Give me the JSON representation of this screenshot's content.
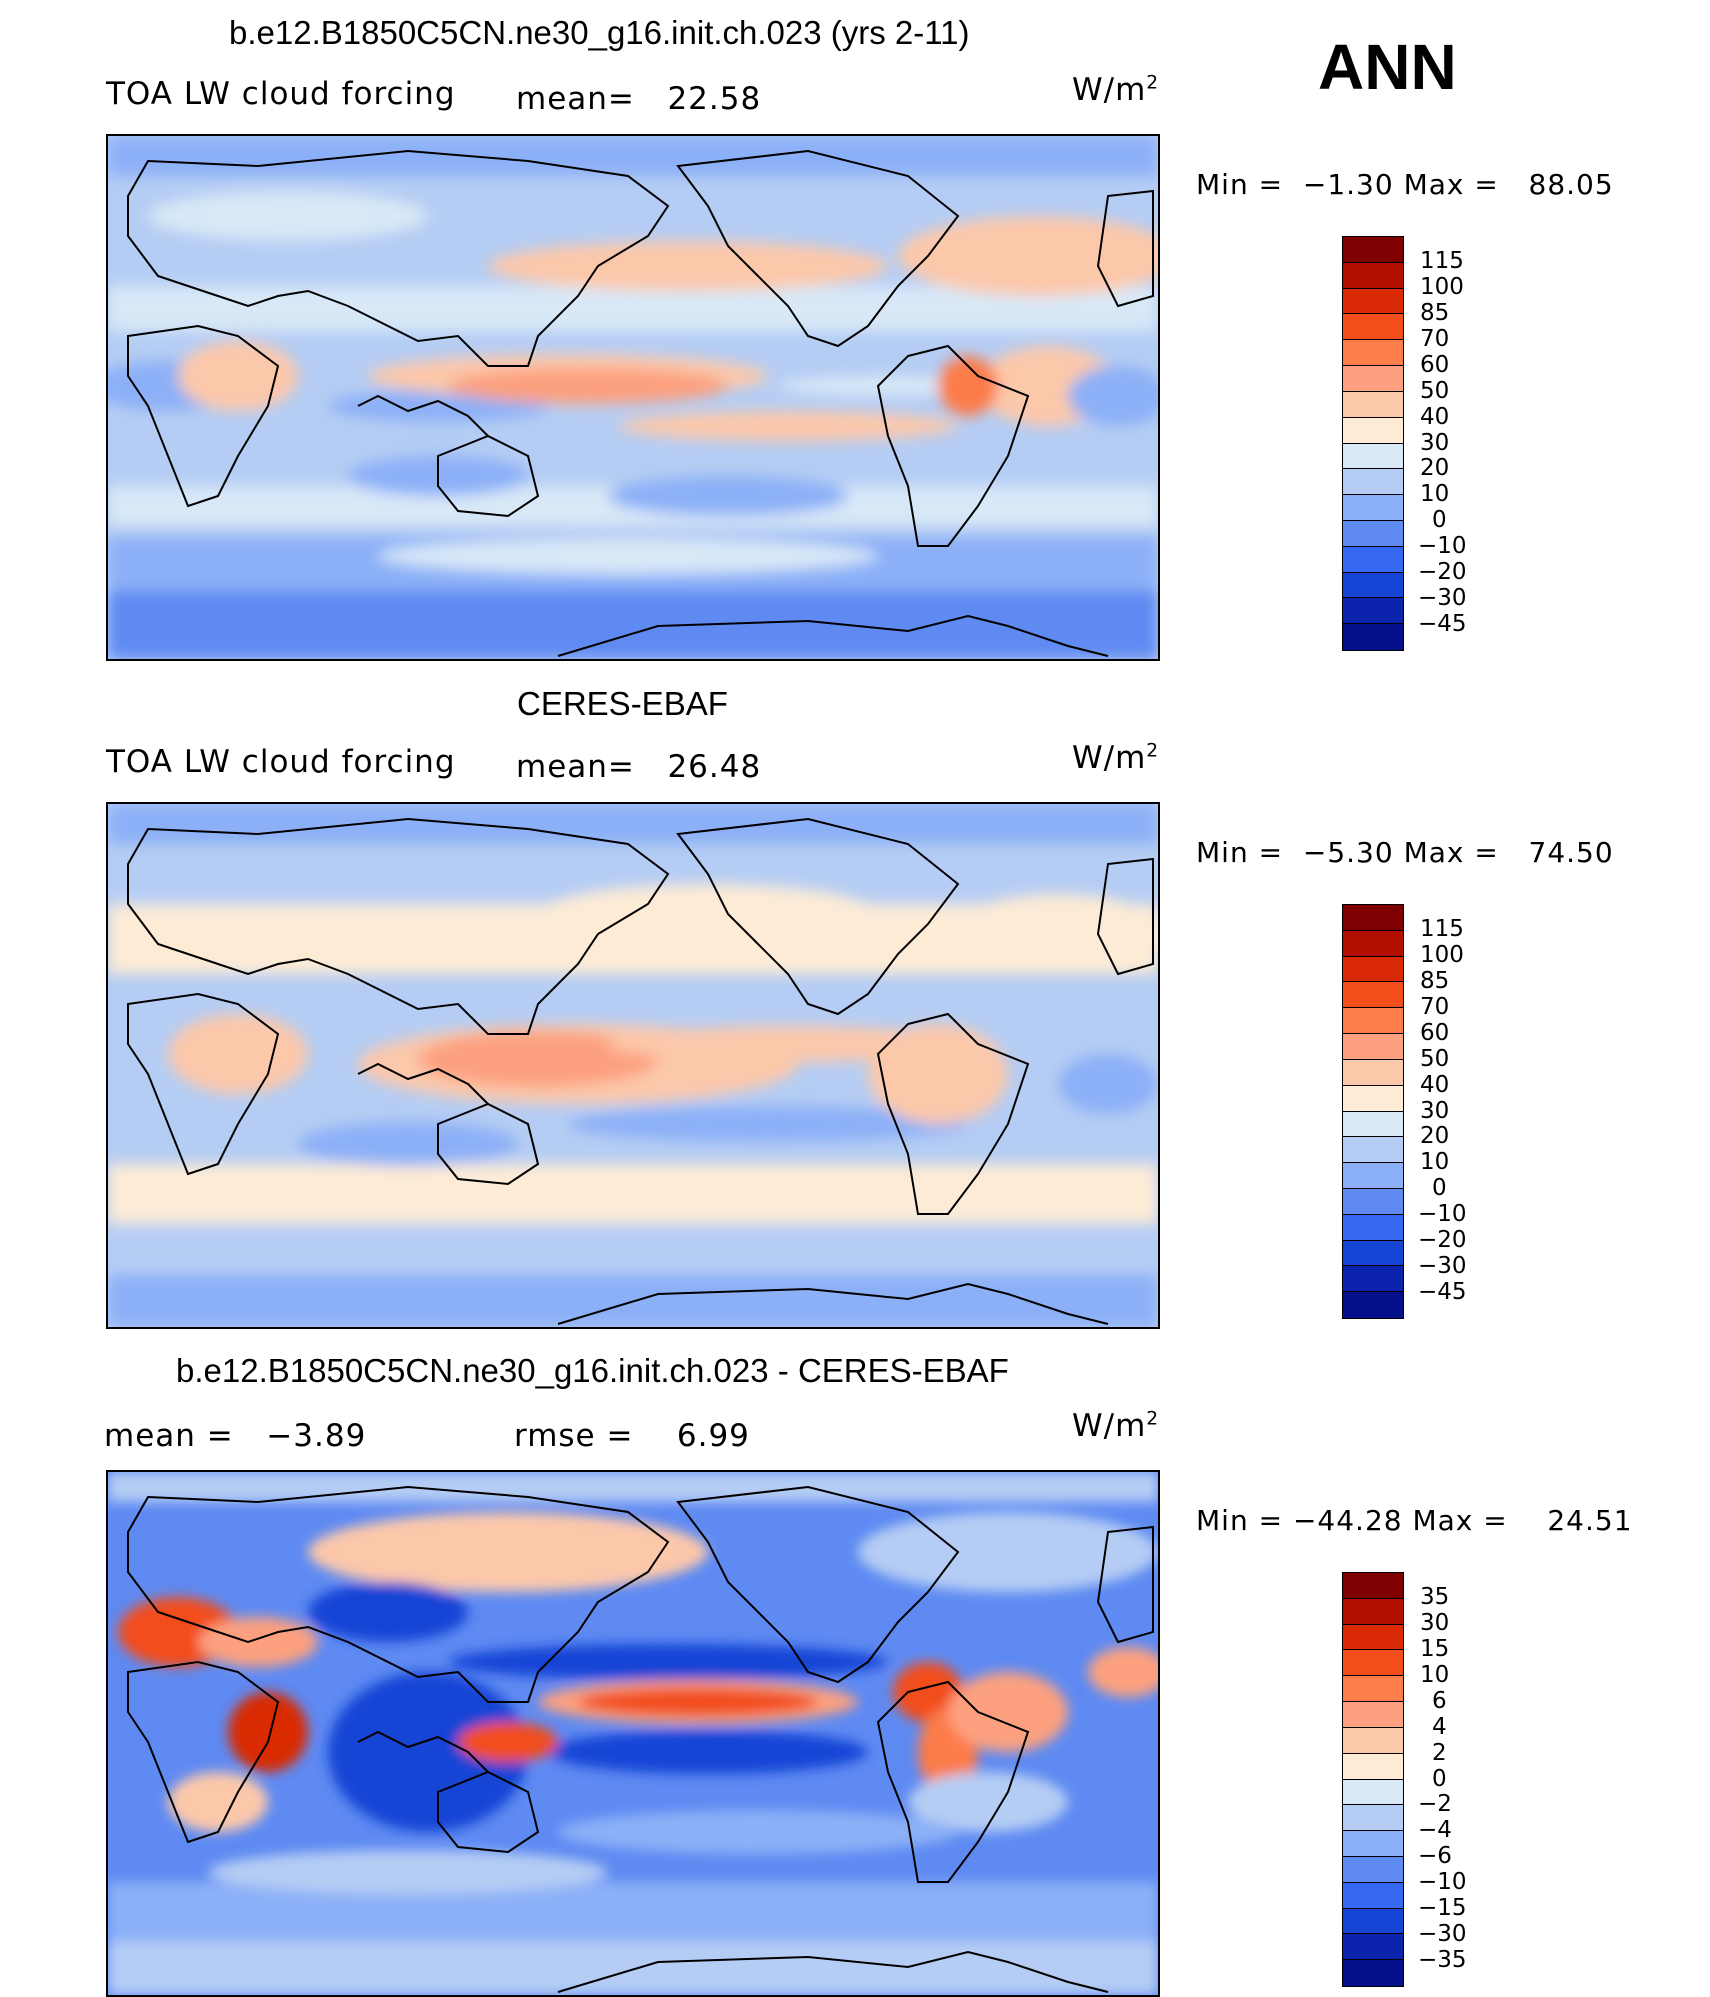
{
  "season": "ANN",
  "units": "W/m",
  "units_sup": "2",
  "panels": [
    {
      "title": "b.e12.B1850C5CN.ne30_g16.init.ch.023 (yrs 2-11)",
      "left_label": "TOA LW cloud forcing",
      "mid_label": "mean=",
      "mid_value": "22.58",
      "min_label": "Min =",
      "min_value": "−1.30",
      "max_label": "Max =",
      "max_value": "88.05",
      "levels": [
        "115",
        "100",
        "85",
        "70",
        "60",
        "50",
        "40",
        "30",
        "20",
        "10",
        "0",
        "−10",
        "−20",
        "−30",
        "−45"
      ]
    },
    {
      "title": "CERES-EBAF",
      "left_label": "TOA LW cloud forcing",
      "mid_label": "mean=",
      "mid_value": "26.48",
      "min_label": "Min =",
      "min_value": "−5.30",
      "max_label": "Max =",
      "max_value": "74.50",
      "levels": [
        "115",
        "100",
        "85",
        "70",
        "60",
        "50",
        "40",
        "30",
        "20",
        "10",
        "0",
        "−10",
        "−20",
        "−30",
        "−45"
      ]
    },
    {
      "title": "b.e12.B1850C5CN.ne30_g16.init.ch.023 - CERES-EBAF",
      "left_label": "mean =",
      "left_value": "−3.89",
      "mid_label": "rmse =",
      "mid_value": "6.99",
      "min_label": "Min =",
      "min_value": "−44.28",
      "max_label": "Max =",
      "max_value": "24.51",
      "levels": [
        "35",
        "30",
        "15",
        "10",
        "6",
        "4",
        "2",
        "0",
        "−2",
        "−4",
        "−6",
        "−10",
        "−15",
        "−30",
        "−35"
      ]
    }
  ],
  "colorbar_colors": [
    "#7f0000",
    "#b30f00",
    "#d92a05",
    "#f24e1c",
    "#fc7c4a",
    "#fca07f",
    "#fcc8aa",
    "#fdebd6",
    "#d8e8f7",
    "#b5cdf4",
    "#8cb0f7",
    "#5e8af2",
    "#3468f0",
    "#1645d6",
    "#0c24ad",
    "#06108a"
  ],
  "chart_data": [
    {
      "type": "heatmap",
      "title": "b.e12.B1850C5CN.ne30_g16.init.ch.023 (yrs 2-11)",
      "variable": "TOA LW cloud forcing",
      "units": "W/m2",
      "mean": 22.58,
      "min": -1.3,
      "max": 88.05,
      "contour_levels": [
        -45,
        -30,
        -20,
        -10,
        0,
        10,
        20,
        30,
        40,
        50,
        60,
        70,
        85,
        100,
        115
      ]
    },
    {
      "type": "heatmap",
      "title": "CERES-EBAF",
      "variable": "TOA LW cloud forcing",
      "units": "W/m2",
      "mean": 26.48,
      "min": -5.3,
      "max": 74.5,
      "contour_levels": [
        -45,
        -30,
        -20,
        -10,
        0,
        10,
        20,
        30,
        40,
        50,
        60,
        70,
        85,
        100,
        115
      ]
    },
    {
      "type": "heatmap",
      "title": "b.e12.B1850C5CN.ne30_g16.init.ch.023 - CERES-EBAF",
      "units": "W/m2",
      "mean": -3.89,
      "rmse": 6.99,
      "min": -44.28,
      "max": 24.51,
      "contour_levels": [
        -35,
        -30,
        -15,
        -10,
        -6,
        -4,
        -2,
        0,
        2,
        4,
        6,
        10,
        15,
        30,
        35
      ]
    }
  ]
}
